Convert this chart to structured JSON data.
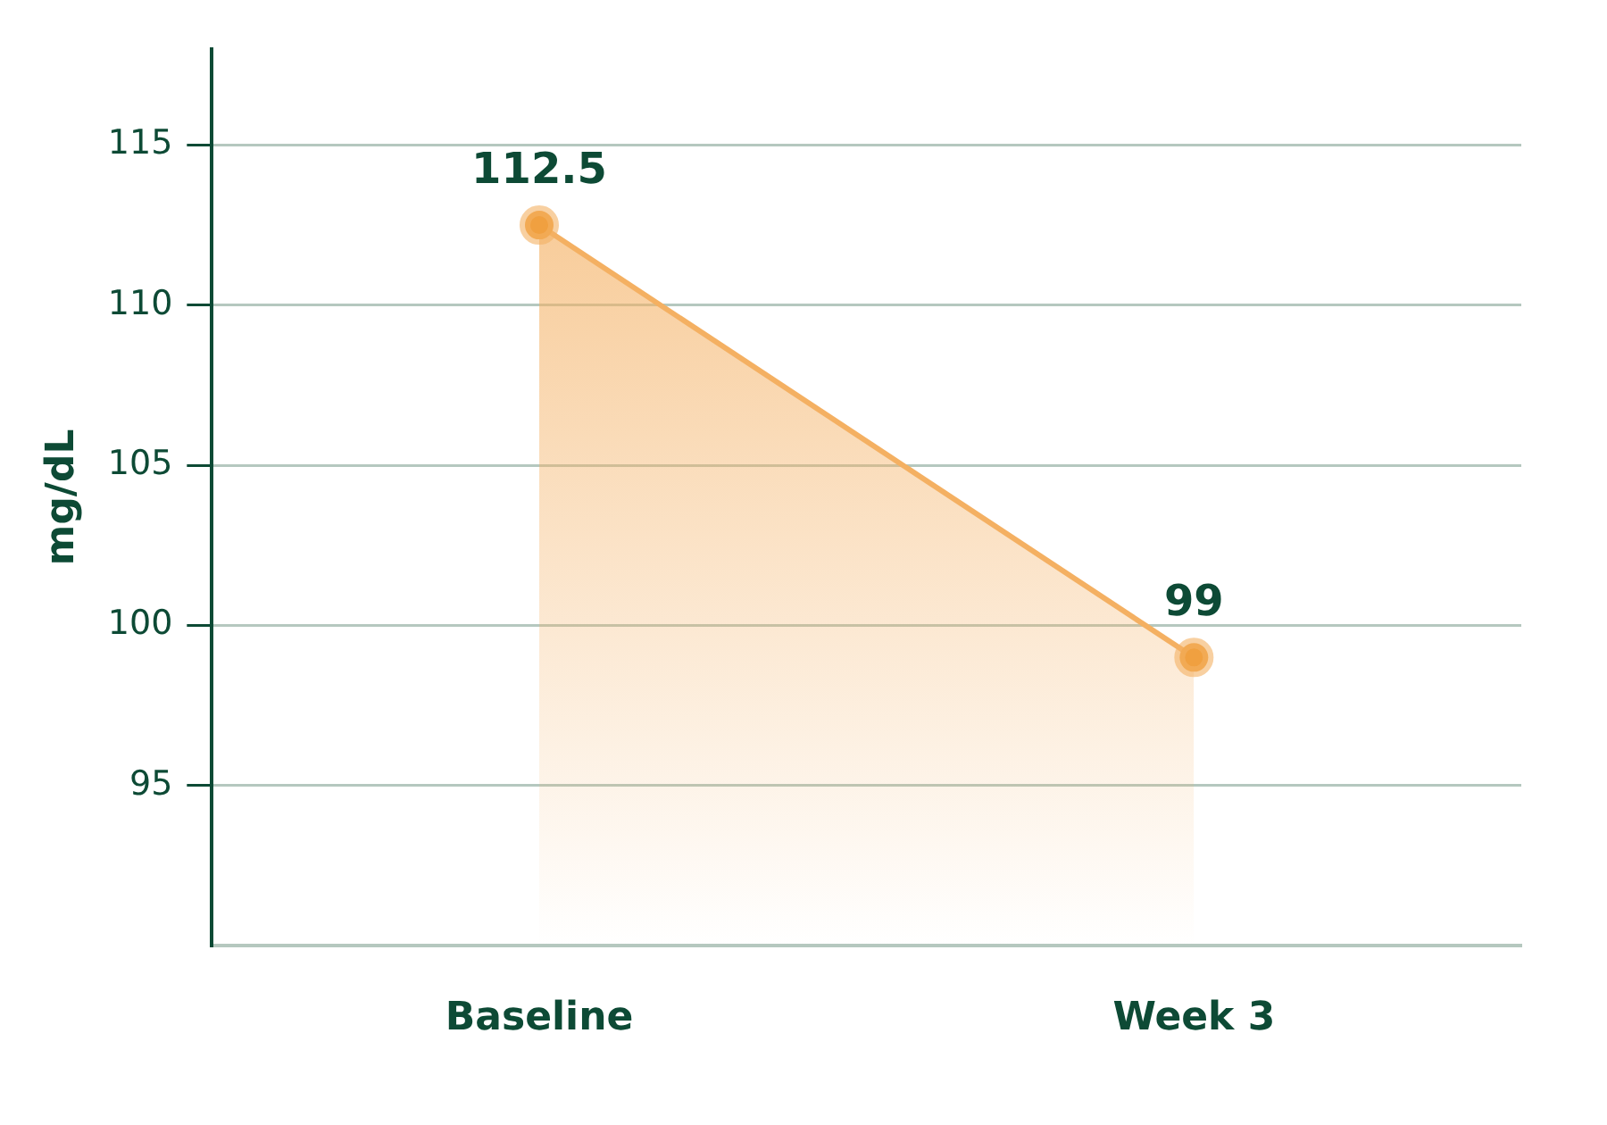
{
  "chart_data": {
    "type": "area",
    "ylabel": "mg/dL",
    "categories": [
      "Baseline",
      "Week 3"
    ],
    "series": [
      {
        "color": "#f4b062",
        "values": [
          112.5,
          99
        ]
      }
    ],
    "ylim": [
      90,
      118
    ],
    "yticks": [
      95,
      100,
      105,
      110,
      115
    ],
    "grid": "y",
    "data_labels": true,
    "marker": "circle",
    "line_style": "solid",
    "legend": false
  }
}
